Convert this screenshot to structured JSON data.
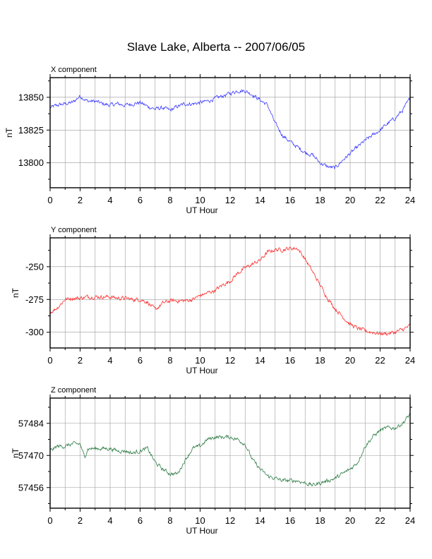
{
  "title": "Slave Lake, Alberta -- 2007/06/05",
  "chart_data": [
    {
      "type": "line",
      "title": "X component",
      "xlabel": "UT Hour",
      "ylabel": "nT",
      "xlim": [
        0,
        24
      ],
      "ylim": [
        13781,
        13865
      ],
      "xticks": [
        0,
        2,
        4,
        6,
        8,
        10,
        12,
        14,
        16,
        18,
        20,
        22,
        24
      ],
      "yticks": [
        13800,
        13825,
        13850
      ],
      "grid": true,
      "color": "#3b3bff",
      "series": [
        {
          "x": [
            0,
            0.5,
            1,
            1.5,
            2,
            2.5,
            3,
            3.5,
            4,
            4.5,
            5,
            5.5,
            6,
            6.5,
            7,
            7.5,
            8,
            8.5,
            9,
            9.5,
            10,
            10.5,
            11,
            11.5,
            12,
            12.5,
            13,
            13.5,
            14,
            14.5,
            15,
            15.5,
            16,
            16.5,
            17,
            17.5,
            18,
            18.5,
            19,
            19.5,
            20,
            20.5,
            21,
            21.5,
            22,
            22.5,
            23,
            23.5,
            24
          ],
          "values": [
            13842,
            13844,
            13845,
            13846,
            13851,
            13847,
            13847,
            13845,
            13844,
            13845,
            13844,
            13845,
            13846,
            13843,
            13841,
            13842,
            13840,
            13843,
            13845,
            13845,
            13846,
            13847,
            13849,
            13851,
            13853,
            13855,
            13855,
            13852,
            13848,
            13844,
            13830,
            13821,
            13816,
            13812,
            13808,
            13806,
            13800,
            13797,
            13796,
            13802,
            13807,
            13812,
            13817,
            13821,
            13825,
            13830,
            13834,
            13840,
            13849
          ]
        }
      ]
    },
    {
      "type": "line",
      "title": "Y component",
      "xlabel": "UT Hour",
      "ylabel": "nT",
      "xlim": [
        0,
        24
      ],
      "ylim": [
        -312,
        -228
      ],
      "xticks": [
        0,
        2,
        4,
        6,
        8,
        10,
        12,
        14,
        16,
        18,
        20,
        22,
        24
      ],
      "yticks": [
        -300,
        -275,
        -250
      ],
      "grid": true,
      "color": "#ff2a2a",
      "series": [
        {
          "x": [
            0,
            0.5,
            1,
            1.5,
            2,
            2.5,
            3,
            3.5,
            4,
            4.5,
            5,
            5.5,
            6,
            6.5,
            7,
            7.5,
            8,
            8.5,
            9,
            9.5,
            10,
            10.5,
            11,
            11.5,
            12,
            12.5,
            13,
            13.5,
            14,
            14.5,
            15,
            15.5,
            16,
            16.5,
            17,
            17.5,
            18,
            18.5,
            19,
            19.5,
            20,
            20.5,
            21,
            21.5,
            22,
            22.5,
            23,
            23.5,
            24
          ],
          "values": [
            -285,
            -281,
            -275,
            -274,
            -274,
            -273,
            -273,
            -273,
            -273,
            -274,
            -274,
            -275,
            -275,
            -277,
            -283,
            -278,
            -276,
            -276,
            -276,
            -275,
            -272,
            -270,
            -268,
            -264,
            -261,
            -255,
            -251,
            -248,
            -245,
            -239,
            -237,
            -237,
            -236,
            -236,
            -244,
            -254,
            -264,
            -274,
            -282,
            -288,
            -294,
            -297,
            -299,
            -300,
            -301,
            -301,
            -300,
            -298,
            -295
          ]
        }
      ]
    },
    {
      "type": "line",
      "title": "Z component",
      "xlabel": "UT Hour",
      "ylabel": "nT",
      "xlim": [
        0,
        24
      ],
      "ylim": [
        57447,
        57495
      ],
      "xticks": [
        0,
        2,
        4,
        6,
        8,
        10,
        12,
        14,
        16,
        18,
        20,
        22,
        24
      ],
      "yticks": [
        57456,
        57470,
        57484
      ],
      "grid": true,
      "color": "#2e7d46",
      "series": [
        {
          "x": [
            0,
            0.5,
            1,
            1.5,
            2,
            2.3,
            2.5,
            3,
            3.5,
            4,
            4.5,
            5,
            5.5,
            6,
            6.5,
            7,
            7.5,
            8,
            8.5,
            9,
            9.5,
            10,
            10.5,
            11,
            11.5,
            12,
            12.5,
            13,
            13.5,
            14,
            14.5,
            15,
            15.5,
            16,
            16.5,
            17,
            17.5,
            18,
            18.5,
            19,
            19.5,
            20,
            20.5,
            21,
            21.5,
            22,
            22.5,
            23,
            23.5,
            24
          ],
          "values": [
            57472,
            57474,
            57474,
            57475,
            57475,
            57469,
            57473,
            57473,
            57473,
            57473,
            57472,
            57472,
            57471,
            57472,
            57473,
            57467,
            57464,
            57462,
            57462,
            57468,
            57473,
            57474,
            57477,
            57478,
            57478,
            57478,
            57477,
            57475,
            57468,
            57464,
            57461,
            57460,
            57459,
            57459,
            57459,
            57458,
            57457,
            57458,
            57459,
            57460,
            57462,
            57464,
            57467,
            57474,
            57478,
            57481,
            57482,
            57482,
            57484,
            57488
          ]
        }
      ]
    }
  ]
}
